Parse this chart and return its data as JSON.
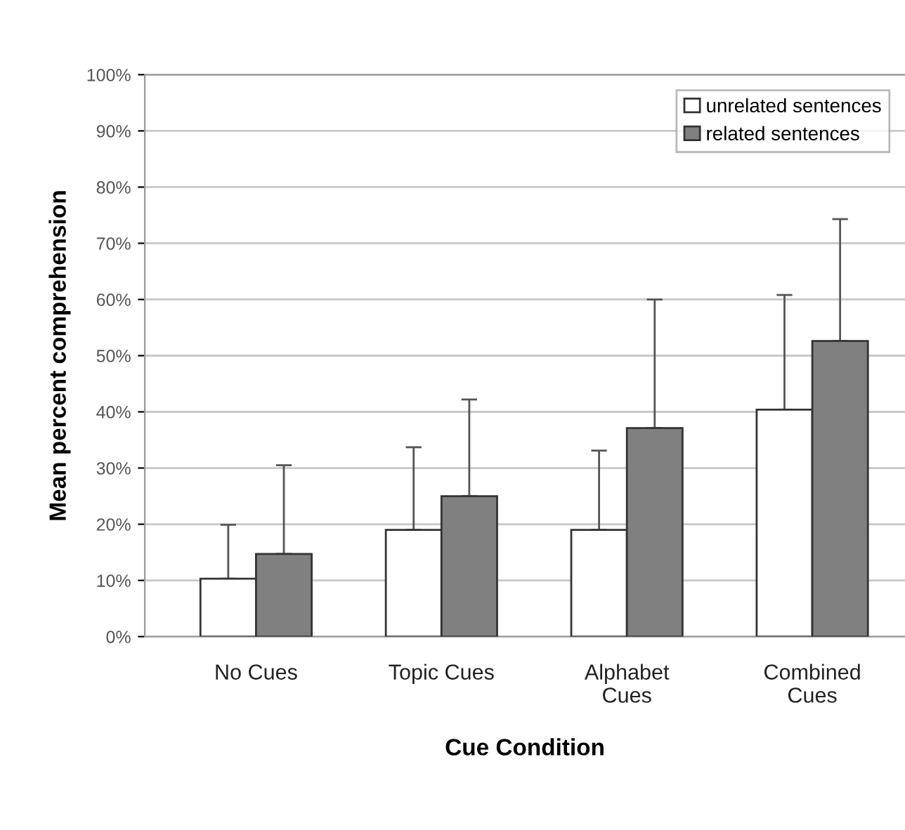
{
  "chart_data": {
    "type": "bar",
    "xlabel": "Cue Condition",
    "ylabel": "Mean percent comprehension",
    "categories": [
      "No Cues",
      "Topic Cues",
      "Alphabet\nCues",
      "Combined\nCues"
    ],
    "series": [
      {
        "name": "unrelated sentences",
        "color": "#ffffff",
        "values": [
          10.3,
          19.0,
          19.0,
          40.4
        ],
        "errors": [
          [
            10.3,
            19.9
          ],
          [
            19.0,
            33.7
          ],
          [
            19.0,
            33.1
          ],
          [
            40.4,
            60.8
          ]
        ]
      },
      {
        "name": "related sentences",
        "color": "#808080",
        "values": [
          14.7,
          25.0,
          37.1,
          52.6
        ],
        "errors": [
          [
            14.7,
            30.5
          ],
          [
            25.0,
            42.2
          ],
          [
            37.1,
            60.0
          ],
          [
            52.6,
            74.3
          ]
        ]
      }
    ],
    "ylim": [
      0,
      100
    ],
    "yticks": [
      {
        "value": 0,
        "label": "0%"
      },
      {
        "value": 10,
        "label": "10%"
      },
      {
        "value": 20,
        "label": "20%"
      },
      {
        "value": 30,
        "label": "30%"
      },
      {
        "value": 40,
        "label": "40%"
      },
      {
        "value": 50,
        "label": "50%"
      },
      {
        "value": 60,
        "label": "60%"
      },
      {
        "value": 70,
        "label": "70%"
      },
      {
        "value": 80,
        "label": "80%"
      },
      {
        "value": 90,
        "label": "90%"
      },
      {
        "value": 100,
        "label": "100%"
      }
    ],
    "grid": "y",
    "legend": "top right"
  }
}
